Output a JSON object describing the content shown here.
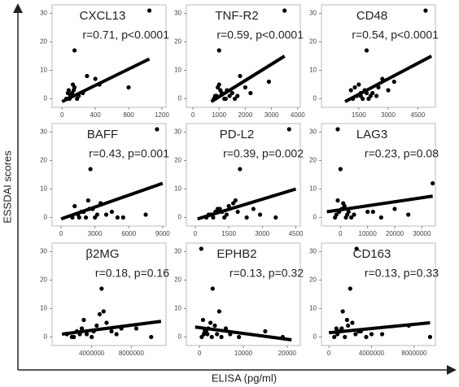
{
  "y_label": "ESSDAI scores",
  "x_label": "ELISA (pg/ml)",
  "chart_data": [
    {
      "type": "scatter",
      "title": "CXCL13",
      "annotation": "r=0.71, p<0.0001",
      "color": "#000000",
      "x": [
        1050,
        800,
        150,
        300,
        400,
        450,
        100,
        120,
        60,
        80,
        150,
        200,
        90,
        130,
        70,
        180,
        110,
        250,
        50,
        140
      ],
      "y": [
        31,
        4,
        17,
        8,
        7,
        5,
        1,
        2,
        0,
        3,
        4,
        1,
        0,
        5,
        2,
        0,
        1,
        2,
        0,
        3
      ],
      "fit": {
        "x": [
          0,
          1050
        ],
        "y": [
          -1,
          14
        ]
      },
      "xlim": [
        -120,
        1250
      ],
      "xticks": [
        0,
        400,
        800,
        1200
      ],
      "ylim": [
        -3,
        33
      ],
      "yticks": [
        0,
        10,
        20,
        30
      ]
    },
    {
      "type": "scatter",
      "title": "TNF-R2",
      "annotation": "r=0.59, p<0.0001",
      "color": "#000000",
      "x": [
        3500,
        1000,
        2900,
        1800,
        2000,
        900,
        1100,
        1200,
        800,
        1300,
        1400,
        1000,
        1500,
        1700,
        950,
        1250,
        1050,
        2200,
        1600,
        850
      ],
      "y": [
        31,
        17,
        6,
        8,
        4,
        1,
        2,
        0,
        0,
        3,
        1,
        5,
        2,
        1,
        4,
        0,
        3,
        2,
        0,
        1
      ],
      "fit": {
        "x": [
          700,
          3500
        ],
        "y": [
          -1,
          15
        ]
      },
      "xlim": [
        -250,
        4100
      ],
      "xticks": [
        0,
        1000,
        2000,
        3000,
        4000
      ],
      "ylim": [
        -3,
        33
      ],
      "yticks": [
        0,
        10,
        20,
        30
      ]
    },
    {
      "type": "scatter",
      "title": "CD48",
      "annotation": "r=0.54, p<0.0001",
      "color": "#000000",
      "x": [
        4900,
        1900,
        2700,
        3300,
        1200,
        1400,
        1600,
        1800,
        2000,
        1300,
        1500,
        2200,
        2400,
        1700,
        1100,
        2100,
        2500,
        1900,
        1600,
        3000
      ],
      "y": [
        31,
        17,
        7,
        6,
        0,
        1,
        2,
        3,
        0,
        4,
        5,
        2,
        1,
        0,
        3,
        1,
        4,
        2,
        1,
        3
      ],
      "fit": {
        "x": [
          800,
          5200
        ],
        "y": [
          -1,
          15
        ]
      },
      "xlim": [
        -400,
        5400
      ],
      "xticks": [
        1500,
        3000,
        4500
      ],
      "ylim": [
        -3,
        33
      ],
      "yticks": [
        0,
        10,
        20,
        30
      ]
    },
    {
      "type": "scatter",
      "title": "BAFF",
      "annotation": "r=0.43, p=0.001",
      "color": "#000000",
      "x": [
        8500,
        2600,
        7500,
        5500,
        1000,
        1500,
        2000,
        2500,
        3000,
        3500,
        1200,
        1800,
        2200,
        4000,
        4500,
        2800,
        1600,
        3200,
        5000,
        2400
      ],
      "y": [
        31,
        17,
        1,
        0,
        0,
        1,
        2,
        3,
        0,
        5,
        4,
        2,
        0,
        1,
        2,
        3,
        0,
        1,
        0,
        6
      ],
      "fit": {
        "x": [
          0,
          9000
        ],
        "y": [
          -0.5,
          12
        ]
      },
      "xlim": [
        -800,
        9300
      ],
      "xticks": [
        0,
        3000,
        6000,
        9000
      ],
      "ylim": [
        -3,
        33
      ],
      "yticks": [
        0,
        10,
        20,
        30
      ]
    },
    {
      "type": "scatter",
      "title": "PD-L2",
      "annotation": "r=0.39, p=0.002",
      "color": "#000000",
      "x": [
        4200,
        2000,
        3600,
        2900,
        500,
        700,
        900,
        1100,
        1300,
        1500,
        1700,
        600,
        800,
        1000,
        1200,
        1400,
        1900,
        2300,
        2600,
        1800
      ],
      "y": [
        31,
        17,
        0,
        1,
        0,
        1,
        2,
        3,
        0,
        4,
        5,
        1,
        0,
        3,
        2,
        1,
        2,
        0,
        3,
        6
      ],
      "fit": {
        "x": [
          100,
          4500
        ],
        "y": [
          -0.5,
          10
        ]
      },
      "xlim": [
        -400,
        4700
      ],
      "xticks": [
        0,
        1500,
        3000,
        4500
      ],
      "ylim": [
        -3,
        33
      ],
      "yticks": [
        0,
        10,
        20,
        30
      ]
    },
    {
      "type": "scatter",
      "title": "LAG3",
      "annotation": "r=0.23, p=0.08",
      "color": "#000000",
      "x": [
        -1000,
        0,
        34000,
        20000,
        25000,
        10000,
        -2000,
        -1500,
        -500,
        500,
        1000,
        1500,
        2000,
        2500,
        -1000,
        3000,
        4000,
        5000,
        15000,
        12000
      ],
      "y": [
        31,
        17,
        12,
        3,
        1,
        2,
        0,
        1,
        2,
        3,
        5,
        4,
        0,
        1,
        6,
        2,
        0,
        1,
        0,
        2
      ],
      "fit": {
        "x": [
          -5000,
          34000
        ],
        "y": [
          2,
          7.5
        ]
      },
      "xlim": [
        -7000,
        35000
      ],
      "xticks": [
        0,
        10000,
        20000,
        30000
      ],
      "ylim": [
        -3,
        33
      ],
      "yticks": [
        0,
        10,
        20,
        30
      ]
    },
    {
      "type": "scatter",
      "title": "β2MG",
      "annotation": "r=0.18, p=0.16",
      "color": "#000000",
      "x": [
        5000000,
        10000000,
        8500000,
        1500000,
        2000000,
        2500000,
        3000000,
        3500000,
        4000000,
        4500000,
        5500000,
        6000000,
        6500000,
        2200000,
        3200000,
        4200000,
        5200000,
        2800000,
        4800000,
        7000000
      ],
      "y": [
        17,
        0,
        3,
        1,
        0,
        2,
        3,
        1,
        0,
        4,
        5,
        2,
        1,
        0,
        6,
        2,
        9,
        1,
        8,
        3
      ],
      "fit": {
        "x": [
          1000000,
          11000000
        ],
        "y": [
          1,
          5.5
        ]
      },
      "xlim": [
        0,
        11500000
      ],
      "xticks": [
        4000000,
        8000000
      ],
      "ylim": [
        -3,
        33
      ],
      "yticks": [
        0,
        10,
        20,
        30
      ]
    },
    {
      "type": "scatter",
      "title": "EPHB2",
      "annotation": "r=0.13, p=0.32",
      "color": "#000000",
      "x": [
        400,
        3000,
        19000,
        15000,
        500,
        1000,
        1500,
        2000,
        2500,
        3500,
        4000,
        5000,
        6000,
        800,
        1200,
        1800,
        2800,
        7000,
        9000,
        4500
      ],
      "y": [
        31,
        17,
        0,
        2,
        0,
        1,
        2,
        3,
        5,
        4,
        1,
        0,
        3,
        6,
        2,
        1,
        0,
        1,
        0,
        9
      ],
      "fit": {
        "x": [
          -1000,
          21000
        ],
        "y": [
          3.5,
          -1
        ]
      },
      "xlim": [
        -3000,
        23000
      ],
      "xticks": [
        0,
        10000,
        20000
      ],
      "ylim": [
        -3,
        33
      ],
      "yticks": [
        0,
        10,
        20,
        30
      ]
    },
    {
      "type": "scatter",
      "title": "CD163",
      "annotation": "r=0.13, p=0.33",
      "color": "#000000",
      "x": [
        2600000,
        2000000,
        7500000,
        9500000,
        500000,
        800000,
        1000000,
        1200000,
        1500000,
        1800000,
        2200000,
        2500000,
        3000000,
        3500000,
        4000000,
        700000,
        1300000,
        1700000,
        2800000,
        5000000
      ],
      "y": [
        31,
        17,
        4,
        0,
        0,
        1,
        2,
        3,
        0,
        4,
        5,
        1,
        2,
        0,
        1,
        3,
        9,
        6,
        2,
        1
      ],
      "fit": {
        "x": [
          0,
          9500000
        ],
        "y": [
          1.5,
          5
        ]
      },
      "xlim": [
        -700000,
        10000000
      ],
      "xticks": [
        0,
        4000000,
        8000000
      ],
      "ylim": [
        -3,
        33
      ],
      "yticks": [
        0,
        10,
        20,
        30
      ]
    }
  ]
}
